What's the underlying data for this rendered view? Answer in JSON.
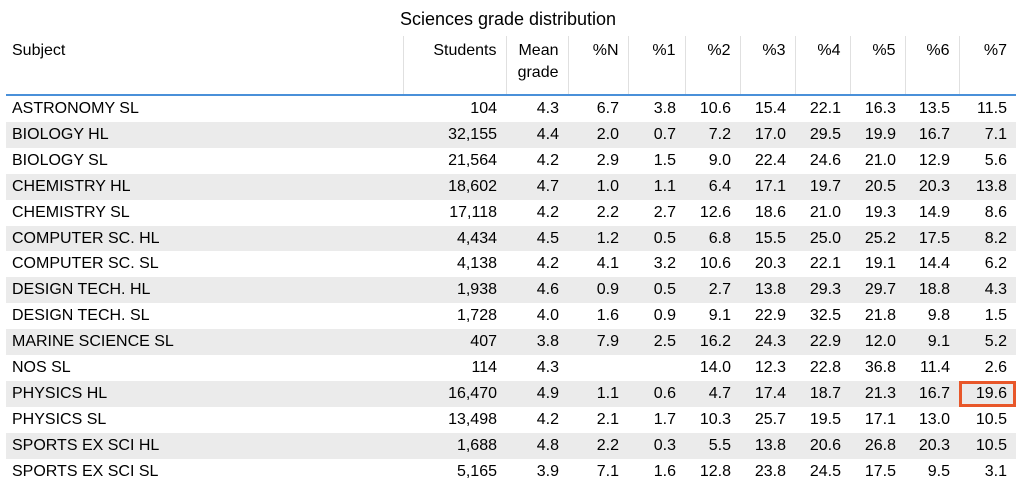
{
  "title": "Sciences grade distribution",
  "columns": [
    "Subject",
    "Students",
    "Mean grade",
    "%N",
    "%1",
    "%2",
    "%3",
    "%4",
    "%5",
    "%6",
    "%7"
  ],
  "rows": [
    [
      "ASTRONOMY SL",
      "104",
      "4.3",
      "6.7",
      "3.8",
      "10.6",
      "15.4",
      "22.1",
      "16.3",
      "13.5",
      "11.5"
    ],
    [
      "BIOLOGY HL",
      "32,155",
      "4.4",
      "2.0",
      "0.7",
      "7.2",
      "17.0",
      "29.5",
      "19.9",
      "16.7",
      "7.1"
    ],
    [
      "BIOLOGY SL",
      "21,564",
      "4.2",
      "2.9",
      "1.5",
      "9.0",
      "22.4",
      "24.6",
      "21.0",
      "12.9",
      "5.6"
    ],
    [
      "CHEMISTRY HL",
      "18,602",
      "4.7",
      "1.0",
      "1.1",
      "6.4",
      "17.1",
      "19.7",
      "20.5",
      "20.3",
      "13.8"
    ],
    [
      "CHEMISTRY SL",
      "17,118",
      "4.2",
      "2.2",
      "2.7",
      "12.6",
      "18.6",
      "21.0",
      "19.3",
      "14.9",
      "8.6"
    ],
    [
      "COMPUTER SC. HL",
      "4,434",
      "4.5",
      "1.2",
      "0.5",
      "6.8",
      "15.5",
      "25.0",
      "25.2",
      "17.5",
      "8.2"
    ],
    [
      "COMPUTER SC. SL",
      "4,138",
      "4.2",
      "4.1",
      "3.2",
      "10.6",
      "20.3",
      "22.1",
      "19.1",
      "14.4",
      "6.2"
    ],
    [
      "DESIGN TECH. HL",
      "1,938",
      "4.6",
      "0.9",
      "0.5",
      "2.7",
      "13.8",
      "29.3",
      "29.7",
      "18.8",
      "4.3"
    ],
    [
      "DESIGN TECH. SL",
      "1,728",
      "4.0",
      "1.6",
      "0.9",
      "9.1",
      "22.9",
      "32.5",
      "21.8",
      "9.8",
      "1.5"
    ],
    [
      "MARINE SCIENCE SL",
      "407",
      "3.8",
      "7.9",
      "2.5",
      "16.2",
      "24.3",
      "22.9",
      "12.0",
      "9.1",
      "5.2"
    ],
    [
      "NOS SL",
      "114",
      "4.3",
      "",
      "",
      "14.0",
      "12.3",
      "22.8",
      "36.8",
      "11.4",
      "2.6"
    ],
    [
      "PHYSICS HL",
      "16,470",
      "4.9",
      "1.1",
      "0.6",
      "4.7",
      "17.4",
      "18.7",
      "21.3",
      "16.7",
      "19.6"
    ],
    [
      "PHYSICS SL",
      "13,498",
      "4.2",
      "2.1",
      "1.7",
      "10.3",
      "25.7",
      "19.5",
      "17.1",
      "13.0",
      "10.5"
    ],
    [
      "SPORTS EX SCI HL",
      "1,688",
      "4.8",
      "2.2",
      "0.3",
      "5.5",
      "13.8",
      "20.6",
      "26.8",
      "20.3",
      "10.5"
    ],
    [
      "SPORTS EX SCI SL",
      "5,165",
      "3.9",
      "7.1",
      "1.6",
      "12.8",
      "23.8",
      "24.5",
      "17.5",
      "9.5",
      "3.1"
    ]
  ],
  "highlight": {
    "row": 11,
    "col": 10,
    "color": "#e8572a"
  },
  "colors": {
    "header_rule": "#4a90d9",
    "stripe": "#ebebeb"
  }
}
